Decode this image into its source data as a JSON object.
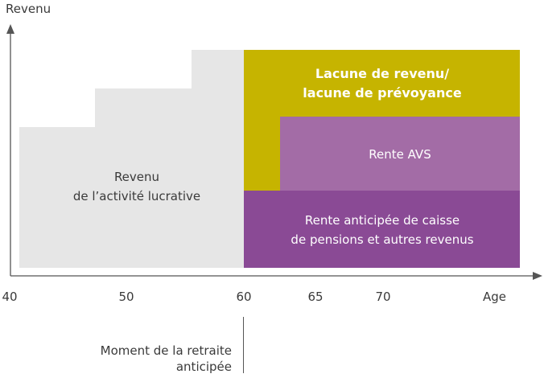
{
  "axes": {
    "y_label": "Revenu",
    "x_label": "Age",
    "x_ticks": [
      "40",
      "50",
      "60",
      "65",
      "70"
    ]
  },
  "blocks": {
    "income_activity": [
      "Revenu",
      "de l’activité lucrative"
    ],
    "gap": [
      "Lacune de revenu/",
      "lacune de prévoyance"
    ],
    "avs": "Rente AVS",
    "pension": [
      "Rente anticipée de caisse",
      "de pensions et autres revenus"
    ]
  },
  "marker": {
    "label": [
      "Moment de la retraite",
      "anticipée"
    ]
  },
  "colors": {
    "grey": "#e6e6e6",
    "olive": "#c6b400",
    "avs_purple": "#a36ca6",
    "pension_purple": "#8a4a95"
  }
}
